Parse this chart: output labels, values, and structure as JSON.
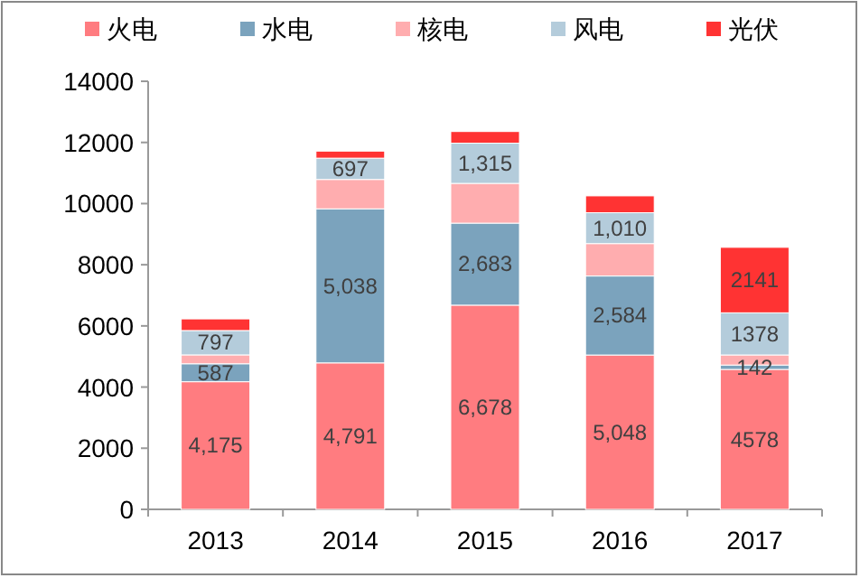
{
  "chart_data": {
    "type": "bar",
    "stacked": true,
    "categories": [
      "2013",
      "2014",
      "2015",
      "2016",
      "2017"
    ],
    "ylim": [
      0,
      14000
    ],
    "yticks": [
      0,
      2000,
      4000,
      6000,
      8000,
      10000,
      12000,
      14000
    ],
    "grid": false,
    "legend": "top",
    "series": [
      {
        "name": "火电",
        "color": "#ff7c80",
        "values": [
          4175,
          4791,
          6678,
          5048,
          4578
        ],
        "value_labels": [
          "4,175",
          "4,791",
          "6,678",
          "5,048",
          "4578"
        ]
      },
      {
        "name": "水电",
        "color": "#7ba3bd",
        "values": [
          587,
          5038,
          2683,
          2584,
          142
        ],
        "value_labels": [
          "587",
          "5,038",
          "2,683",
          "2,584",
          "142"
        ]
      },
      {
        "name": "核电",
        "color": "#ffadaf",
        "values": [
          290,
          960,
          1300,
          1060,
          330
        ]
      },
      {
        "name": "风电",
        "color": "#b4ccdb",
        "values": [
          797,
          697,
          1315,
          1010,
          1378
        ],
        "value_labels": [
          "797",
          "697",
          "1,315",
          "1,010",
          "1378"
        ]
      },
      {
        "name": "光伏",
        "color": "#ff3333",
        "values": [
          380,
          230,
          380,
          550,
          2141
        ],
        "value_labels": [
          null,
          null,
          null,
          null,
          "2141"
        ]
      }
    ]
  }
}
